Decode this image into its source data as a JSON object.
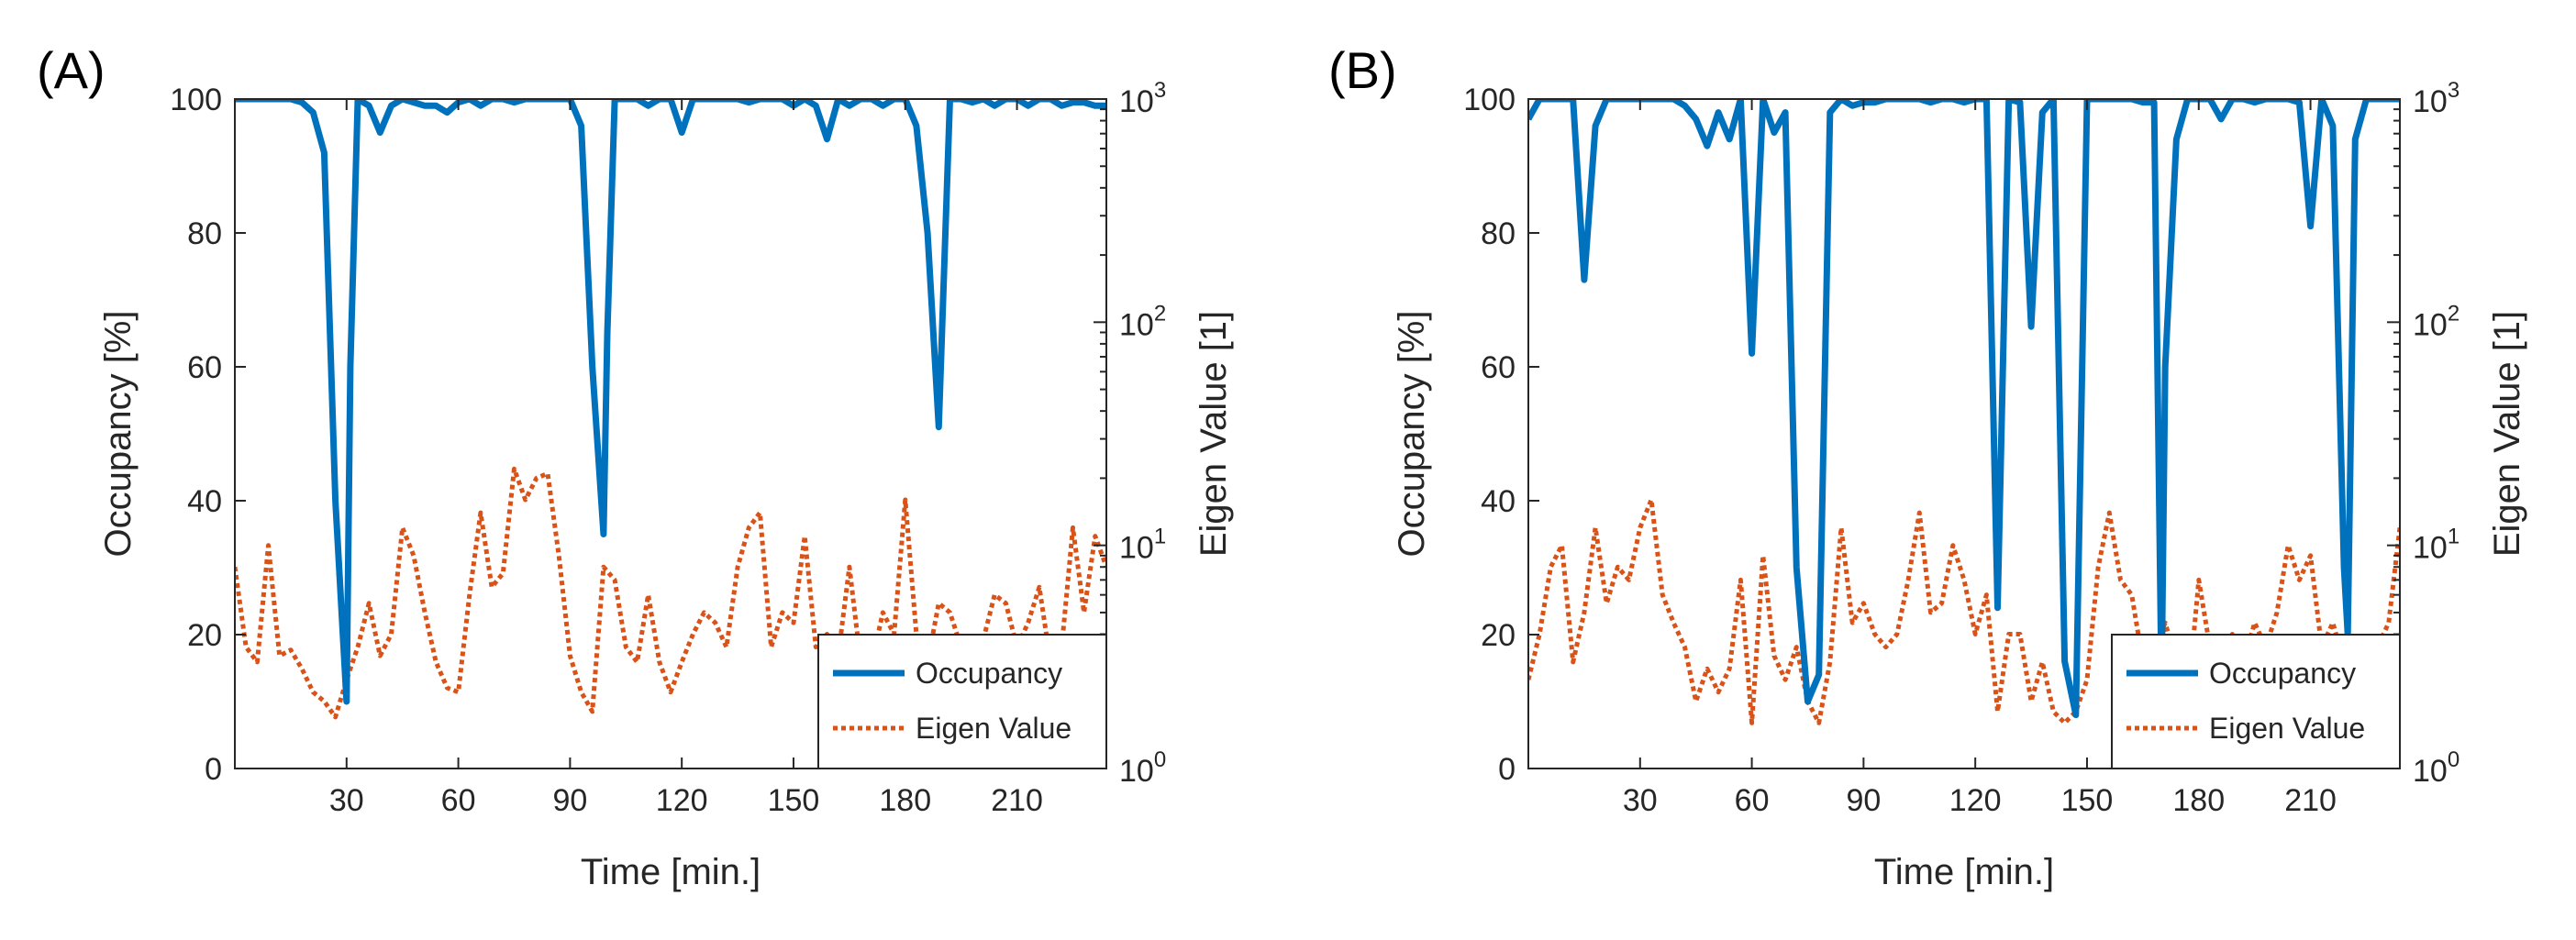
{
  "colors": {
    "occupancy": "#0072BD",
    "eigen": "#D95319",
    "axis": "#262626",
    "background": "#ffffff"
  },
  "chart_data": [
    {
      "type": "line",
      "panel_label": "(A)",
      "xlabel": "Time [min.]",
      "ylabel_left": "Occupancy [%]",
      "ylabel_right": "Eigen Value [1]",
      "xlim": [
        0,
        234
      ],
      "ylim_left": [
        0,
        100
      ],
      "ylim_right": [
        1,
        1000
      ],
      "yscale_right": "log",
      "x_ticks": [
        30,
        60,
        90,
        120,
        150,
        180,
        210
      ],
      "y_ticks_left": [
        0,
        20,
        40,
        60,
        80,
        100
      ],
      "y_ticks_right": [
        {
          "value": 1,
          "base": "10",
          "exp": "0"
        },
        {
          "value": 10,
          "base": "10",
          "exp": "1"
        },
        {
          "value": 100,
          "base": "10",
          "exp": "2"
        },
        {
          "value": 1000,
          "base": "10",
          "exp": "3"
        }
      ],
      "grid": false,
      "legend": {
        "location": "bottom-right",
        "entries": [
          "Occupancy",
          "Eigen Value"
        ]
      },
      "series": [
        {
          "name": "Occupancy",
          "axis": "left",
          "style": "solid",
          "x": [
            0,
            3,
            6,
            9,
            12,
            15,
            18,
            21,
            24,
            27,
            30,
            31,
            33,
            36,
            39,
            42,
            45,
            48,
            51,
            54,
            57,
            60,
            63,
            66,
            69,
            72,
            75,
            78,
            81,
            84,
            87,
            90,
            93,
            96,
            99,
            100,
            102,
            105,
            108,
            111,
            114,
            117,
            120,
            123,
            126,
            129,
            132,
            135,
            138,
            141,
            144,
            147,
            150,
            153,
            156,
            159,
            162,
            165,
            168,
            171,
            174,
            177,
            180,
            183,
            186,
            189,
            192,
            195,
            198,
            201,
            204,
            207,
            210,
            213,
            216,
            219,
            222,
            225,
            228,
            231,
            234
          ],
          "y": [
            100,
            100,
            100,
            100,
            100,
            100,
            99.5,
            98,
            92,
            40,
            10,
            60,
            100,
            99,
            95,
            99,
            100,
            99.5,
            99,
            99,
            98,
            99.5,
            100,
            99,
            100,
            100,
            99.5,
            100,
            100,
            100,
            100,
            100,
            96,
            60,
            35,
            65,
            100,
            100,
            100,
            99,
            100,
            100,
            95,
            100,
            100,
            100,
            100,
            100,
            99.5,
            100,
            100,
            100,
            99,
            100,
            99,
            94,
            100,
            99,
            100,
            100,
            99,
            100,
            100,
            96,
            80,
            51,
            100,
            100,
            99.5,
            100,
            99,
            100,
            100,
            99,
            100,
            100,
            99,
            99.5,
            99.5,
            99,
            99
          ]
        },
        {
          "name": "Eigen Value",
          "axis": "right",
          "style": "dotted",
          "x": [
            0,
            3,
            6,
            9,
            12,
            15,
            18,
            21,
            24,
            27,
            30,
            33,
            36,
            39,
            42,
            45,
            48,
            51,
            54,
            57,
            60,
            63,
            66,
            69,
            72,
            75,
            78,
            81,
            84,
            87,
            90,
            93,
            96,
            99,
            102,
            105,
            108,
            111,
            114,
            117,
            120,
            123,
            126,
            129,
            132,
            135,
            138,
            141,
            144,
            147,
            150,
            153,
            156,
            159,
            162,
            165,
            168,
            171,
            174,
            177,
            180,
            183,
            186,
            189,
            192,
            195,
            198,
            201,
            204,
            207,
            210,
            213,
            216,
            219,
            222,
            225,
            228,
            231,
            234
          ],
          "y": [
            8,
            3.5,
            3,
            10,
            3.2,
            3.4,
            2.8,
            2.2,
            2,
            1.7,
            2.5,
            3.5,
            5.5,
            3.2,
            4,
            12,
            9,
            5,
            3,
            2.3,
            2.2,
            6,
            14,
            6.5,
            7.5,
            22,
            16,
            20,
            21,
            9,
            3.2,
            2.2,
            1.8,
            8,
            7,
            3.5,
            3,
            6,
            3,
            2.2,
            3,
            4,
            5,
            4.5,
            3.5,
            8,
            12,
            14,
            3.5,
            5,
            4.5,
            11,
            3.5,
            4,
            3.2,
            8,
            3,
            3,
            5,
            4,
            16,
            4,
            3,
            5.5,
            5,
            3.5,
            3.2,
            3.8,
            6,
            5.5,
            3.5,
            4.5,
            6.5,
            3,
            3.5,
            12,
            5,
            11,
            8
          ]
        }
      ]
    },
    {
      "type": "line",
      "panel_label": "(B)",
      "xlabel": "Time [min.]",
      "ylabel_left": "Occupancy [%]",
      "ylabel_right": "Eigen Value [1]",
      "xlim": [
        0,
        234
      ],
      "ylim_left": [
        0,
        100
      ],
      "ylim_right": [
        1,
        1000
      ],
      "yscale_right": "log",
      "x_ticks": [
        30,
        60,
        90,
        120,
        150,
        180,
        210
      ],
      "y_ticks_left": [
        0,
        20,
        40,
        60,
        80,
        100
      ],
      "y_ticks_right": [
        {
          "value": 1,
          "base": "10",
          "exp": "0"
        },
        {
          "value": 10,
          "base": "10",
          "exp": "1"
        },
        {
          "value": 100,
          "base": "10",
          "exp": "2"
        },
        {
          "value": 1000,
          "base": "10",
          "exp": "3"
        }
      ],
      "grid": false,
      "legend": {
        "location": "bottom-right",
        "entries": [
          "Occupancy",
          "Eigen Value"
        ]
      },
      "series": [
        {
          "name": "Occupancy",
          "axis": "left",
          "style": "solid",
          "x": [
            0,
            3,
            6,
            9,
            12,
            15,
            18,
            21,
            24,
            27,
            30,
            33,
            36,
            39,
            42,
            45,
            48,
            51,
            54,
            57,
            60,
            63,
            66,
            69,
            72,
            75,
            78,
            81,
            84,
            87,
            90,
            93,
            96,
            99,
            102,
            105,
            108,
            111,
            114,
            117,
            120,
            123,
            126,
            129,
            132,
            135,
            138,
            141,
            144,
            147,
            150,
            153,
            156,
            159,
            162,
            165,
            168,
            170,
            171,
            174,
            177,
            180,
            183,
            186,
            189,
            192,
            195,
            198,
            201,
            204,
            207,
            210,
            213,
            216,
            219,
            220,
            222,
            225,
            228,
            231,
            234
          ],
          "y": [
            97,
            100,
            100,
            100,
            100,
            73,
            96,
            100,
            100,
            100,
            100,
            100,
            100,
            100,
            99,
            97,
            93,
            98,
            94,
            100,
            62,
            100,
            95,
            98,
            30,
            10,
            14,
            98,
            100,
            99,
            99.5,
            99.5,
            100,
            100,
            100,
            100,
            99.5,
            100,
            100,
            99.5,
            100,
            100,
            24,
            100,
            99.5,
            66,
            98,
            100,
            16,
            8,
            100,
            100,
            100,
            100,
            100,
            99.5,
            99.5,
            12,
            60,
            94,
            100,
            100,
            100,
            97,
            100,
            100,
            99.5,
            100,
            100,
            100,
            99.5,
            81,
            100,
            96,
            30,
            20,
            94,
            100,
            100,
            100,
            100
          ]
        },
        {
          "name": "Eigen Value",
          "axis": "right",
          "style": "dotted",
          "x": [
            0,
            3,
            6,
            9,
            12,
            15,
            18,
            21,
            24,
            27,
            30,
            33,
            36,
            39,
            42,
            45,
            48,
            51,
            54,
            57,
            60,
            63,
            66,
            69,
            72,
            75,
            78,
            81,
            84,
            87,
            90,
            93,
            96,
            99,
            102,
            105,
            108,
            111,
            114,
            117,
            120,
            123,
            126,
            129,
            132,
            135,
            138,
            141,
            144,
            147,
            150,
            153,
            156,
            159,
            162,
            165,
            168,
            171,
            174,
            177,
            180,
            183,
            186,
            189,
            192,
            195,
            198,
            201,
            204,
            207,
            210,
            213,
            216,
            219,
            222,
            225,
            228,
            231,
            234
          ],
          "y": [
            2.5,
            4,
            8,
            10,
            3,
            5,
            12,
            5.5,
            8,
            7,
            12,
            16,
            6,
            4.5,
            3.5,
            2,
            2.8,
            2.2,
            2.8,
            7,
            1.6,
            9,
            3.2,
            2.5,
            3.5,
            2,
            1.6,
            3,
            12,
            4.5,
            5.5,
            4,
            3.5,
            4,
            7,
            14,
            5,
            5.5,
            10,
            7,
            4,
            6,
            1.8,
            4,
            4,
            2,
            3,
            1.8,
            1.6,
            1.8,
            2.5,
            8,
            14,
            7,
            6,
            3,
            3.5,
            4.5,
            3,
            2,
            7,
            3.5,
            3,
            4,
            3,
            4.5,
            3.5,
            5,
            10,
            7,
            9,
            3.5,
            4.5,
            3,
            3.5,
            3.5,
            3.5,
            4.5,
            12
          ]
        }
      ]
    }
  ]
}
